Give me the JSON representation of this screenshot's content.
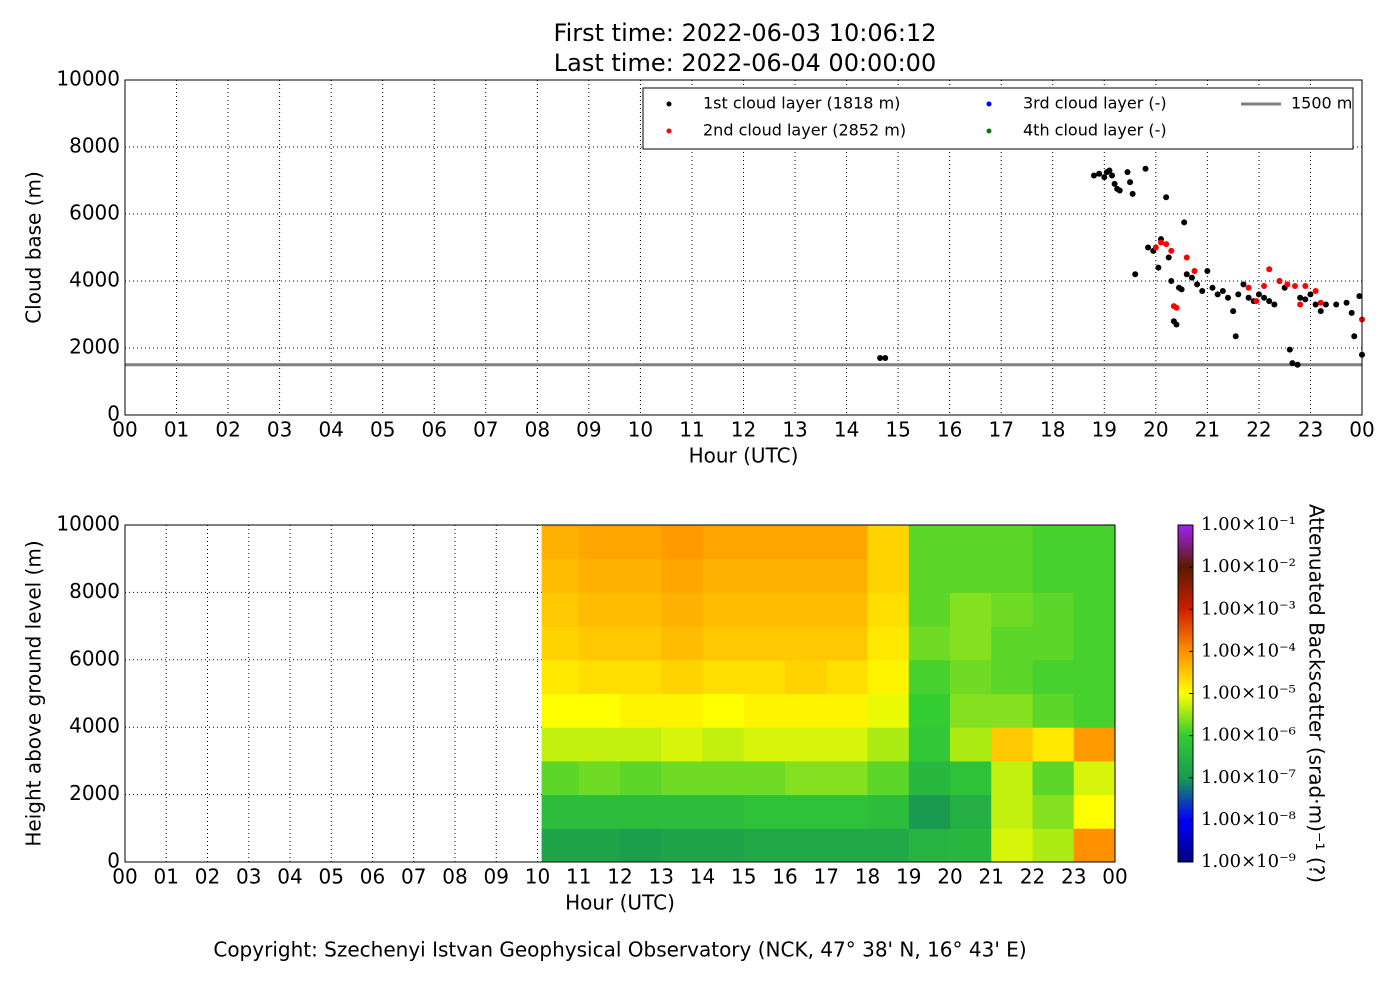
{
  "chart_data": [
    {
      "type": "scatter",
      "title": "First time: 2022-06-03 10:06:12",
      "subtitle": "Last time: 2022-06-04 00:00:00",
      "xlabel": "Hour (UTC)",
      "ylabel": "Cloud base (m)",
      "xlim": [
        0,
        24
      ],
      "xticks": [
        {
          "value": 0,
          "label": "00"
        },
        {
          "value": 1,
          "label": "01"
        },
        {
          "value": 2,
          "label": "02"
        },
        {
          "value": 3,
          "label": "03"
        },
        {
          "value": 4,
          "label": "04"
        },
        {
          "value": 5,
          "label": "05"
        },
        {
          "value": 6,
          "label": "06"
        },
        {
          "value": 7,
          "label": "07"
        },
        {
          "value": 8,
          "label": "08"
        },
        {
          "value": 9,
          "label": "09"
        },
        10,
        11,
        12,
        13,
        14,
        15,
        16,
        17,
        18,
        19,
        20,
        21,
        22,
        23,
        {
          "value": 24,
          "label": "00"
        }
      ],
      "ylim": [
        0,
        10000
      ],
      "yticks": [
        0,
        2000,
        4000,
        6000,
        8000,
        10000
      ],
      "grid": true,
      "legend": "upper right",
      "series": [
        {
          "name": "1st cloud layer (1818 m)",
          "color": "#000000",
          "x": [
            14.65,
            14.75,
            18.8,
            18.9,
            19.0,
            19.05,
            19.1,
            19.15,
            19.2,
            19.25,
            19.3,
            19.45,
            19.5,
            19.55,
            19.8,
            19.6,
            19.85,
            19.95,
            20.05,
            20.1,
            20.2,
            20.25,
            20.3,
            20.35,
            20.4,
            20.45,
            20.5,
            20.55,
            20.6,
            20.7,
            20.8,
            20.9,
            21.0,
            21.1,
            21.2,
            21.3,
            21.4,
            21.5,
            21.55,
            21.6,
            21.7,
            21.8,
            21.9,
            22.0,
            22.1,
            22.2,
            22.3,
            22.4,
            22.5,
            22.6,
            22.65,
            22.75,
            22.8,
            22.9,
            23.0,
            23.1,
            23.2,
            23.3,
            23.5,
            23.7,
            23.8,
            23.85,
            23.95,
            24.0
          ],
          "values": [
            1700,
            1700,
            7150,
            7200,
            7100,
            7250,
            7300,
            7150,
            6900,
            6750,
            6700,
            7250,
            6950,
            6600,
            7350,
            4200,
            5000,
            4900,
            4400,
            5250,
            6500,
            4700,
            4000,
            2800,
            2700,
            3800,
            3750,
            5750,
            4200,
            4100,
            3900,
            3700,
            4300,
            3800,
            3600,
            3700,
            3500,
            3100,
            2350,
            3600,
            3900,
            3500,
            3400,
            3600,
            3500,
            3400,
            3300,
            4000,
            3800,
            1950,
            1550,
            1500,
            3500,
            3450,
            3600,
            3300,
            3100,
            3300,
            3300,
            3350,
            3050,
            2350,
            3550,
            1800
          ]
        },
        {
          "name": "2nd cloud layer (2852 m)",
          "color": "#ff0000",
          "x": [
            20.0,
            20.1,
            20.2,
            20.3,
            20.35,
            20.4,
            20.6,
            20.75,
            21.8,
            21.95,
            22.1,
            22.2,
            22.4,
            22.55,
            22.7,
            22.8,
            22.9,
            23.1,
            23.2,
            24.0
          ],
          "values": [
            5000,
            5150,
            5100,
            4900,
            3250,
            3200,
            4700,
            4300,
            3800,
            3400,
            3850,
            4350,
            4000,
            3900,
            3850,
            3300,
            3850,
            3700,
            3350,
            2850
          ]
        },
        {
          "name": "3rd cloud layer (-)",
          "color": "#0000ff",
          "x": [],
          "values": []
        },
        {
          "name": "4th cloud layer (-)",
          "color": "#008000",
          "x": [],
          "values": []
        }
      ],
      "hlines": [
        {
          "name": "1500 m",
          "value": 1500,
          "color": "#808080"
        }
      ]
    },
    {
      "type": "heatmap",
      "xlabel": "Hour (UTC)",
      "ylabel": "Height above ground level (m)",
      "xlim": [
        0,
        24
      ],
      "xticks": [
        {
          "value": 0,
          "label": "00"
        },
        {
          "value": 1,
          "label": "01"
        },
        {
          "value": 2,
          "label": "02"
        },
        {
          "value": 3,
          "label": "03"
        },
        {
          "value": 4,
          "label": "04"
        },
        {
          "value": 5,
          "label": "05"
        },
        {
          "value": 6,
          "label": "06"
        },
        {
          "value": 7,
          "label": "07"
        },
        {
          "value": 8,
          "label": "08"
        },
        {
          "value": 9,
          "label": "09"
        },
        10,
        11,
        12,
        13,
        14,
        15,
        16,
        17,
        18,
        19,
        20,
        21,
        22,
        23,
        {
          "value": 24,
          "label": "00"
        }
      ],
      "ylim": [
        0,
        10000
      ],
      "yticks": [
        0,
        2000,
        4000,
        6000,
        8000,
        10000
      ],
      "grid": true,
      "x_edges": [
        10.1,
        11,
        12,
        13,
        14,
        15,
        16,
        17,
        18,
        19,
        20,
        21,
        22,
        23,
        24
      ],
      "y_edges": [
        0,
        1000,
        2000,
        3000,
        4000,
        5000,
        6000,
        7000,
        8000,
        9000,
        10000
      ],
      "z": [
        [
          -6.8,
          -6.8,
          -6.9,
          -6.8,
          -6.8,
          -6.7,
          -6.7,
          -6.7,
          -6.7,
          -6.5,
          -6.4,
          -5.2,
          -5.4,
          -4.0
        ],
        [
          -6.3,
          -6.3,
          -6.3,
          -6.3,
          -6.3,
          -6.2,
          -6.2,
          -6.2,
          -6.3,
          -7.0,
          -6.6,
          -5.3,
          -5.6,
          -5.0
        ],
        [
          -5.8,
          -5.7,
          -5.8,
          -5.7,
          -5.7,
          -5.7,
          -5.6,
          -5.6,
          -5.8,
          -6.4,
          -6.2,
          -5.3,
          -5.8,
          -5.2
        ],
        [
          -5.3,
          -5.3,
          -5.3,
          -5.2,
          -5.3,
          -5.2,
          -5.2,
          -5.2,
          -5.4,
          -6.1,
          -5.4,
          -4.5,
          -4.8,
          -4.1
        ],
        [
          -5.0,
          -5.0,
          -4.9,
          -4.9,
          -5.0,
          -4.9,
          -4.9,
          -4.9,
          -5.1,
          -6.0,
          -5.6,
          -5.6,
          -5.8,
          -5.9
        ],
        [
          -4.8,
          -4.7,
          -4.7,
          -4.6,
          -4.7,
          -4.7,
          -4.6,
          -4.7,
          -4.9,
          -5.9,
          -5.7,
          -5.8,
          -5.9,
          -5.9
        ],
        [
          -4.6,
          -4.5,
          -4.5,
          -4.4,
          -4.5,
          -4.5,
          -4.5,
          -4.5,
          -4.8,
          -5.7,
          -5.6,
          -5.8,
          -5.8,
          -5.9
        ],
        [
          -4.5,
          -4.4,
          -4.4,
          -4.3,
          -4.4,
          -4.4,
          -4.4,
          -4.4,
          -4.7,
          -5.8,
          -5.6,
          -5.7,
          -5.8,
          -5.9
        ],
        [
          -4.4,
          -4.3,
          -4.3,
          -4.2,
          -4.3,
          -4.3,
          -4.3,
          -4.3,
          -4.6,
          -5.8,
          -5.8,
          -5.8,
          -5.9,
          -5.9
        ],
        [
          -4.3,
          -4.2,
          -4.2,
          -4.1,
          -4.2,
          -4.2,
          -4.2,
          -4.2,
          -4.6,
          -5.8,
          -5.8,
          -5.8,
          -5.9,
          -5.9
        ]
      ],
      "colorbar_label": "Attenuated Backscatter (srad·m)⁻¹ (?)",
      "clim": [
        -9,
        -1
      ],
      "colormap": [
        "#000080",
        "#0000ff",
        "#1a9a50",
        "#33cc33",
        "#ffff00",
        "#ff9000",
        "#cc2000",
        "#5a1a00",
        "#a020f0"
      ],
      "colorbar_ticks": [
        {
          "value": -9,
          "label": "1.00×10⁻⁹"
        },
        {
          "value": -8,
          "label": "1.00×10⁻⁸"
        },
        {
          "value": -7,
          "label": "1.00×10⁻⁷"
        },
        {
          "value": -6,
          "label": "1.00×10⁻⁶"
        },
        {
          "value": -5,
          "label": "1.00×10⁻⁵"
        },
        {
          "value": -4,
          "label": "1.00×10⁻⁴"
        },
        {
          "value": -3,
          "label": "1.00×10⁻³"
        },
        {
          "value": -2,
          "label": "1.00×10⁻²"
        },
        {
          "value": -1,
          "label": "1.00×10⁻¹"
        }
      ]
    }
  ],
  "footer": "Copyright: Szechenyi Istvan Geophysical Observatory (NCK, 47° 38' N, 16° 43' E)"
}
